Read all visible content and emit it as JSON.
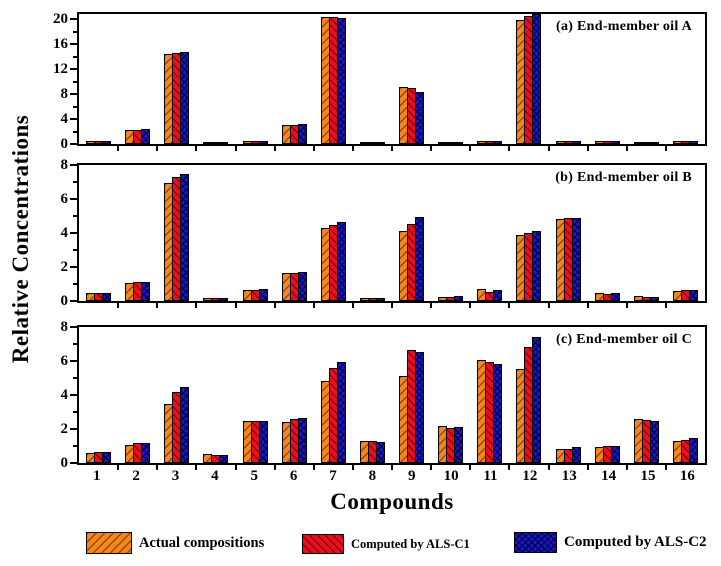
{
  "figure": {
    "y_axis_label": "Relative Concentrations",
    "x_axis_label": "Compounds"
  },
  "legend": {
    "items": [
      {
        "key": "actual",
        "label": "Actual compositions"
      },
      {
        "key": "c1",
        "label": "Computed by ALS-C1"
      },
      {
        "key": "c2",
        "label": "Computed by ALS-C2"
      }
    ]
  },
  "colors": {
    "actual": "#F5861F",
    "actual_hatch": "#9A4A00",
    "als_c1": "#E8101E",
    "als_c1_hatch": "#8F0010",
    "als_c2": "#1B1BB4",
    "als_c2_hatch": "#000060",
    "axis": "#000000"
  },
  "chart_data": [
    {
      "type": "bar",
      "panel_label": "(a) End-member oil A",
      "ylim": [
        0,
        20.8
      ],
      "yticks": [
        0,
        4,
        8,
        12,
        16,
        20
      ],
      "ytick_minor_step": 2,
      "grid": false,
      "categories": [
        "1",
        "2",
        "3",
        "4",
        "5",
        "6",
        "7",
        "8",
        "9",
        "10",
        "11",
        "12",
        "13",
        "14",
        "15",
        "16"
      ],
      "series": [
        {
          "key": "actual",
          "name": "Actual compositions",
          "values": [
            0.45,
            2.2,
            14.35,
            0.1,
            0.45,
            3.0,
            20.25,
            0.1,
            9.2,
            0.1,
            0.45,
            19.9,
            0.5,
            0.5,
            0.1,
            0.5
          ]
        },
        {
          "key": "c1",
          "name": "Computed by ALS-C1",
          "values": [
            0.45,
            2.3,
            14.55,
            0.1,
            0.5,
            3.1,
            20.35,
            0.1,
            8.9,
            0.1,
            0.45,
            20.5,
            0.5,
            0.5,
            0.1,
            0.55
          ]
        },
        {
          "key": "c2",
          "name": "Computed by ALS-C2",
          "values": [
            0.5,
            2.35,
            14.7,
            0.1,
            0.55,
            3.15,
            20.15,
            0.1,
            8.4,
            0.1,
            0.5,
            20.75,
            0.55,
            0.55,
            0.1,
            0.55
          ]
        }
      ]
    },
    {
      "type": "bar",
      "panel_label": "(b) End-member oil B",
      "ylim": [
        0,
        8
      ],
      "yticks": [
        0,
        2,
        4,
        6,
        8
      ],
      "ytick_minor_step": 1,
      "grid": false,
      "categories": [
        "1",
        "2",
        "3",
        "4",
        "5",
        "6",
        "7",
        "8",
        "9",
        "10",
        "11",
        "12",
        "13",
        "14",
        "15",
        "16"
      ],
      "series": [
        {
          "key": "actual",
          "name": "Actual compositions",
          "values": [
            0.5,
            1.05,
            6.95,
            0.2,
            0.65,
            1.65,
            4.3,
            0.2,
            4.1,
            0.25,
            0.7,
            3.9,
            4.85,
            0.45,
            0.3,
            0.6
          ]
        },
        {
          "key": "c1",
          "name": "Computed by ALS-C1",
          "values": [
            0.5,
            1.1,
            7.3,
            0.2,
            0.65,
            1.65,
            4.5,
            0.2,
            4.55,
            0.25,
            0.55,
            4.0,
            4.9,
            0.4,
            0.25,
            0.65
          ]
        },
        {
          "key": "c2",
          "name": "Computed by ALS-C2",
          "values": [
            0.5,
            1.1,
            7.45,
            0.2,
            0.7,
            1.7,
            4.65,
            0.2,
            4.95,
            0.3,
            0.65,
            4.1,
            4.9,
            0.45,
            0.25,
            0.65
          ]
        }
      ]
    },
    {
      "type": "bar",
      "panel_label": "(c) End-member oil C",
      "ylim": [
        0,
        8
      ],
      "yticks": [
        0,
        2,
        4,
        6,
        8
      ],
      "ytick_minor_step": 1,
      "grid": false,
      "categories": [
        "1",
        "2",
        "3",
        "4",
        "5",
        "6",
        "7",
        "8",
        "9",
        "10",
        "11",
        "12",
        "13",
        "14",
        "15",
        "16"
      ],
      "series": [
        {
          "key": "actual",
          "name": "Actual compositions",
          "values": [
            0.6,
            1.05,
            3.45,
            0.55,
            2.45,
            2.4,
            4.8,
            1.3,
            5.1,
            2.15,
            6.05,
            5.55,
            0.8,
            0.95,
            2.6,
            1.3
          ]
        },
        {
          "key": "c1",
          "name": "Computed by ALS-C1",
          "values": [
            0.65,
            1.15,
            4.2,
            0.5,
            2.45,
            2.6,
            5.6,
            1.3,
            6.65,
            2.05,
            5.95,
            6.8,
            0.85,
            1.0,
            2.55,
            1.35
          ]
        },
        {
          "key": "c2",
          "name": "Computed by ALS-C2",
          "values": [
            0.65,
            1.2,
            4.5,
            0.5,
            2.45,
            2.65,
            5.95,
            1.25,
            6.55,
            2.1,
            5.8,
            7.4,
            0.95,
            1.0,
            2.5,
            1.45
          ]
        }
      ]
    }
  ]
}
